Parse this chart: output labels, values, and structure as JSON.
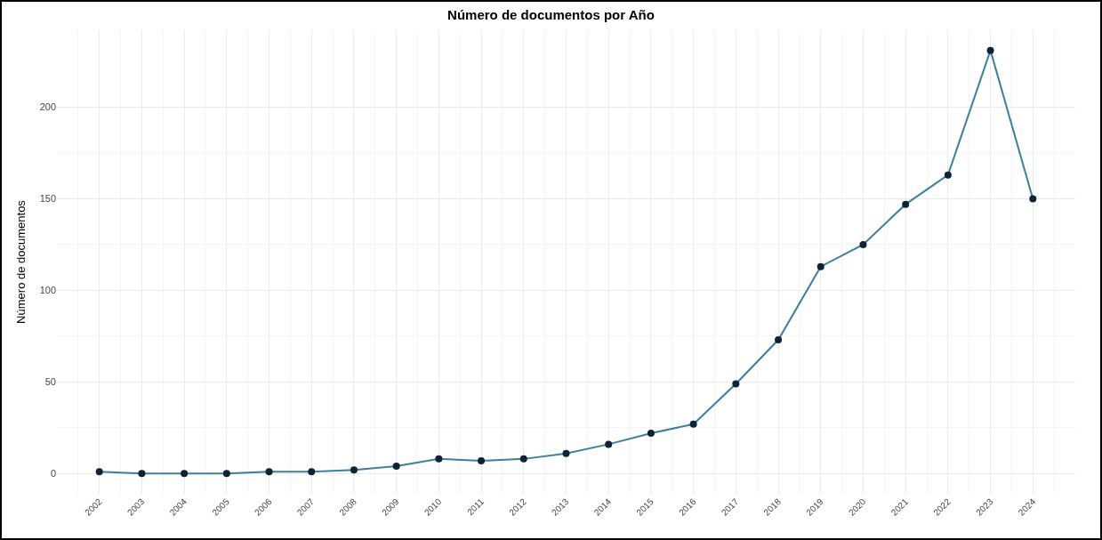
{
  "chart_data": {
    "type": "line",
    "title": "Número de documentos por Año",
    "ylabel": "Número de documentos",
    "categories": [
      "2002",
      "2003",
      "2004",
      "2005",
      "2006",
      "2007",
      "2008",
      "2009",
      "2010",
      "2011",
      "2012",
      "2013",
      "2014",
      "2015",
      "2016",
      "2017",
      "2018",
      "2019",
      "2020",
      "2021",
      "2022",
      "2023",
      "2024"
    ],
    "series": [
      {
        "color": "#3d7fa0",
        "values": [
          1,
          0,
          0,
          0,
          1,
          1,
          2,
          4,
          8,
          7,
          8,
          11,
          16,
          22,
          27,
          49,
          73,
          113,
          125,
          147,
          163,
          231,
          150
        ]
      }
    ],
    "ylim": [
      -11,
      242
    ],
    "yticks": [
      0,
      50,
      100,
      150,
      200
    ],
    "grid": true,
    "marker": "circle",
    "line_style": "solid"
  }
}
